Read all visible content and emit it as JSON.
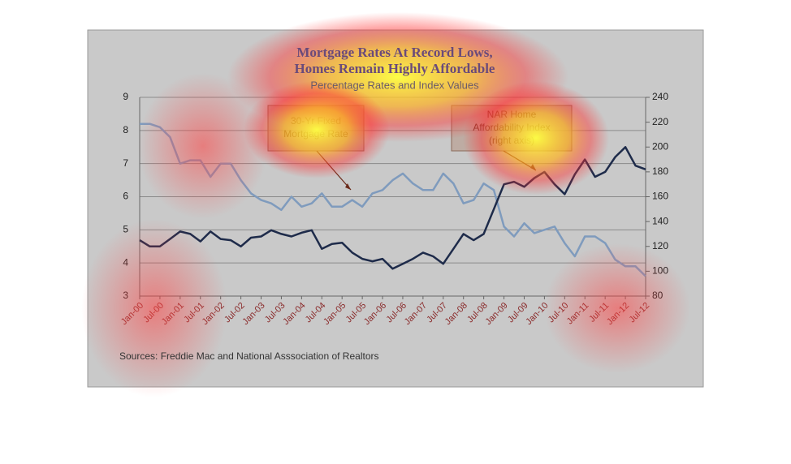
{
  "chart_data": {
    "type": "line",
    "title": [
      "Mortgage Rates At Record Lows,",
      "Homes Remain Highly Affordable"
    ],
    "subtitle": "Percentage Rates and Index Values",
    "categories": [
      "Jan-00",
      null,
      "Jul-00",
      null,
      "Jan-01",
      null,
      "Jul-01",
      null,
      "Jan-02",
      null,
      "Jul-02",
      null,
      "Jan-03",
      null,
      "Jul-03",
      null,
      "Jan-04",
      null,
      "Jul-04",
      null,
      "Jan-05",
      null,
      "Jul-05",
      null,
      "Jan-06",
      null,
      "Jul-06",
      null,
      "Jan-07",
      null,
      "Jul-07",
      null,
      "Jan-08",
      null,
      "Jul-08",
      null,
      "Jan-09",
      null,
      "Jul-09",
      null,
      "Jan-10",
      null,
      "Jul-10",
      null,
      "Jan-11",
      null,
      "Jul-11",
      null,
      "Jan-12",
      null,
      "Jul-12"
    ],
    "series": [
      {
        "name": "30-Yr Fixed Mortgage Rate",
        "color": "#7f9bbd",
        "values": [
          8.2,
          8.2,
          8.1,
          7.8,
          7.0,
          7.1,
          7.1,
          6.6,
          7.0,
          7.0,
          6.5,
          6.1,
          5.9,
          5.8,
          5.6,
          6.0,
          5.7,
          5.8,
          6.1,
          5.7,
          5.7,
          5.9,
          5.7,
          6.1,
          6.2,
          6.5,
          6.7,
          6.4,
          6.2,
          6.2,
          6.7,
          6.4,
          5.8,
          5.9,
          6.4,
          6.2,
          5.1,
          4.8,
          5.2,
          4.9,
          5.0,
          5.1,
          4.6,
          4.2,
          4.8,
          4.8,
          4.6,
          4.1,
          3.9,
          3.9,
          3.6
        ]
      },
      {
        "name": "NAR Home Affordability Index (right axis)",
        "color": "#1e2b4a",
        "axis": "y2",
        "values": [
          125,
          120,
          120,
          126,
          132,
          130,
          124,
          132,
          126,
          125,
          120,
          127,
          128,
          133,
          130,
          128,
          131,
          133,
          118,
          122,
          123,
          115,
          110,
          108,
          110,
          102,
          106,
          110,
          115,
          112,
          106,
          118,
          130,
          125,
          130,
          150,
          170,
          172,
          168,
          175,
          180,
          170,
          162,
          178,
          190,
          176,
          180,
          192,
          200,
          185,
          182
        ]
      }
    ],
    "annotations": [
      {
        "lines": [
          "30-Yr Fixed",
          "Mortgage Rate"
        ]
      },
      {
        "lines": [
          "NAR Home",
          "Affordability Index",
          "(right axis)"
        ]
      }
    ],
    "ylim": [
      3,
      9
    ],
    "yticks": [
      3,
      4,
      5,
      6,
      7,
      8,
      9
    ],
    "y2lim": [
      80,
      240
    ],
    "y2ticks": [
      80,
      100,
      120,
      140,
      160,
      180,
      200,
      220,
      240
    ],
    "grid": true,
    "source": "Sources:  Freddie Mac and National Asssociation of Realtors"
  }
}
